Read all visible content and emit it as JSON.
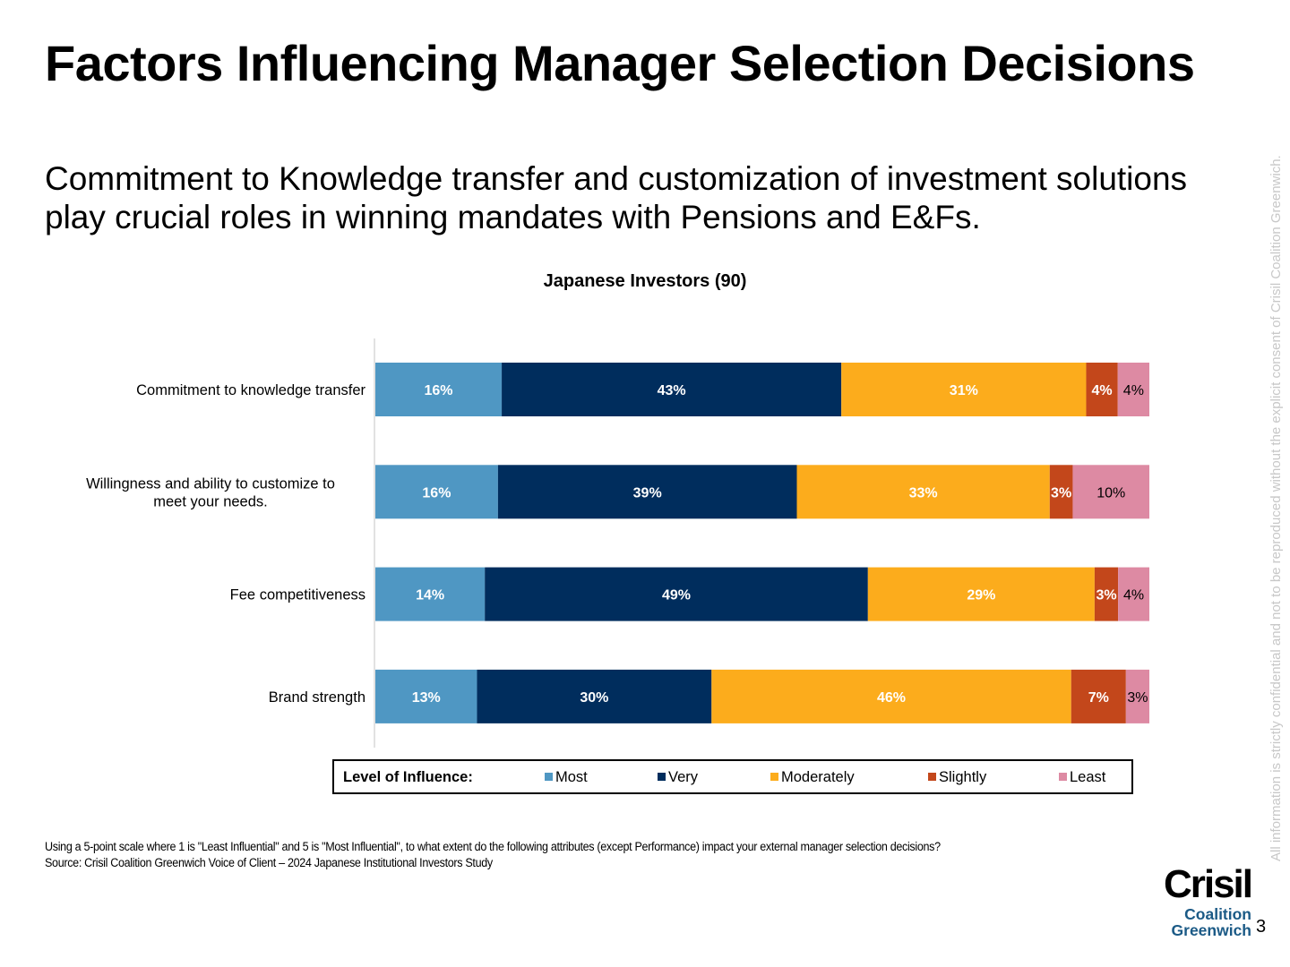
{
  "header": {
    "title": "Factors Influencing Manager Selection Decisions",
    "subtitle": "Commitment to Knowledge transfer and customization of investment solutions play crucial roles in winning mandates with Pensions and E&Fs."
  },
  "chart_data": {
    "type": "bar",
    "orientation": "horizontal",
    "stacked": true,
    "title": "Japanese Investors (90)",
    "categories": [
      "Commitment to knowledge transfer",
      "Willingness and ability to customize to meet your needs.",
      "Fee competitiveness",
      "Brand strength"
    ],
    "series": [
      {
        "name": "Most",
        "color": "#4f97c3",
        "values": [
          16,
          16,
          14,
          13
        ]
      },
      {
        "name": "Very",
        "color": "#002d5d",
        "values": [
          43,
          39,
          49,
          30
        ]
      },
      {
        "name": "Moderately",
        "color": "#fcac1c",
        "values": [
          31,
          33,
          29,
          46
        ]
      },
      {
        "name": "Slightly",
        "color": "#c3471b",
        "values": [
          4,
          3,
          3,
          7
        ]
      },
      {
        "name": "Least",
        "color": "#dd8aa3",
        "values": [
          4,
          10,
          4,
          3
        ]
      }
    ],
    "value_suffix": "%",
    "legend": {
      "title": "Level of Influence:",
      "placement": "bottom"
    },
    "grid": false
  },
  "footnote": {
    "question": "Using a 5-point scale where 1 is \"Least Influential\" and 5 is \"Most Influential\", to what extent do the following attributes (except Performance) impact your external manager selection decisions?",
    "source": "Source: Crisil Coalition Greenwich Voice of Client – 2024 Japanese Institutional Investors Study"
  },
  "side_note": "All information is strictly confidential and not to be reproduced without the explicit consent of Crisil Coalition Greenwich.",
  "logo": {
    "main": "Crisil",
    "line1": "Coalition",
    "line2": "Greenwich"
  },
  "page_number": "3"
}
